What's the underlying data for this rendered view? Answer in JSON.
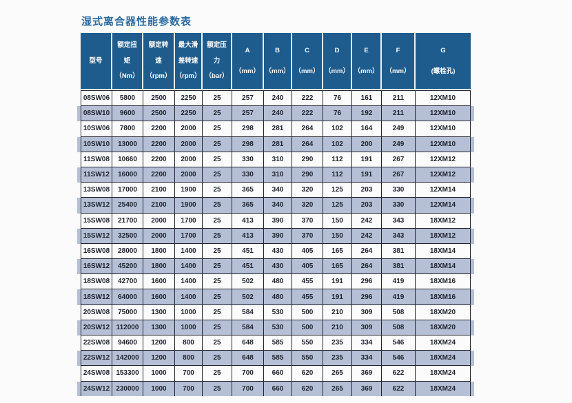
{
  "title": "湿式离合器性能参数表",
  "colors": {
    "header_bg": "#1e5c8e",
    "stripe": "#b5c0d7",
    "border": "#23232e",
    "title": "#2a6aa3"
  },
  "table": {
    "columns": [
      {
        "id": "model",
        "lines": [
          "型号"
        ]
      },
      {
        "id": "torque",
        "lines": [
          "额定扭",
          "矩",
          "（Nm）"
        ]
      },
      {
        "id": "speed",
        "lines": [
          "额定转",
          "速",
          "（rpm）"
        ]
      },
      {
        "id": "slip",
        "lines": [
          "最大滑",
          "差转速",
          "（rpm）"
        ]
      },
      {
        "id": "pressure",
        "lines": [
          "额定压",
          "力",
          "（bar）"
        ]
      },
      {
        "id": "A",
        "lines": [
          "A",
          "（mm）"
        ]
      },
      {
        "id": "B",
        "lines": [
          "B",
          "（mm）"
        ]
      },
      {
        "id": "C",
        "lines": [
          "C",
          "（mm）"
        ]
      },
      {
        "id": "D",
        "lines": [
          "D",
          "（mm）"
        ]
      },
      {
        "id": "E",
        "lines": [
          "E",
          "（mm）"
        ]
      },
      {
        "id": "F",
        "lines": [
          "F",
          "（mm）"
        ]
      },
      {
        "id": "G",
        "lines": [
          "G",
          "(螺栓孔)"
        ]
      }
    ],
    "rows": [
      [
        "08SW06",
        "5800",
        "2500",
        "2250",
        "25",
        "257",
        "240",
        "222",
        "76",
        "161",
        "211",
        "12XM10"
      ],
      [
        "08SW10",
        "9600",
        "2500",
        "2250",
        "25",
        "257",
        "240",
        "222",
        "76",
        "192",
        "211",
        "12XM10"
      ],
      [
        "10SW06",
        "7800",
        "2200",
        "2000",
        "25",
        "298",
        "281",
        "264",
        "102",
        "164",
        "249",
        "12XM10"
      ],
      [
        "10SW10",
        "13000",
        "2200",
        "2000",
        "25",
        "298",
        "281",
        "264",
        "102",
        "200",
        "249",
        "12XM10"
      ],
      [
        "11SW08",
        "10660",
        "2200",
        "2000",
        "25",
        "330",
        "310",
        "290",
        "112",
        "191",
        "267",
        "12XM12"
      ],
      [
        "11SW12",
        "16000",
        "2200",
        "2000",
        "25",
        "330",
        "310",
        "290",
        "112",
        "191",
        "267",
        "12XM12"
      ],
      [
        "13SW08",
        "17000",
        "2100",
        "1900",
        "25",
        "365",
        "340",
        "320",
        "125",
        "203",
        "330",
        "12XM14"
      ],
      [
        "13SW12",
        "25400",
        "2100",
        "1900",
        "25",
        "365",
        "340",
        "320",
        "125",
        "203",
        "330",
        "12XM14"
      ],
      [
        "15SW08",
        "21700",
        "2000",
        "1700",
        "25",
        "413",
        "390",
        "370",
        "150",
        "242",
        "343",
        "18XM12"
      ],
      [
        "15SW12",
        "32500",
        "2000",
        "1700",
        "25",
        "413",
        "390",
        "370",
        "150",
        "242",
        "343",
        "18XM12"
      ],
      [
        "16SW08",
        "28000",
        "1800",
        "1400",
        "25",
        "451",
        "430",
        "405",
        "165",
        "264",
        "381",
        "18XM14"
      ],
      [
        "16SW12",
        "45200",
        "1800",
        "1400",
        "25",
        "451",
        "430",
        "405",
        "165",
        "264",
        "381",
        "18XM14"
      ],
      [
        "18SW08",
        "42700",
        "1600",
        "1400",
        "25",
        "502",
        "480",
        "455",
        "191",
        "296",
        "419",
        "18XM16"
      ],
      [
        "18SW12",
        "64000",
        "1600",
        "1400",
        "25",
        "502",
        "480",
        "455",
        "191",
        "296",
        "419",
        "18XM16"
      ],
      [
        "20SW08",
        "75000",
        "1300",
        "1000",
        "25",
        "584",
        "530",
        "500",
        "210",
        "309",
        "508",
        "18XM20"
      ],
      [
        "20SW12",
        "112000",
        "1300",
        "1000",
        "25",
        "584",
        "530",
        "500",
        "210",
        "309",
        "508",
        "18XM20"
      ],
      [
        "22SW08",
        "94600",
        "1200",
        "800",
        "25",
        "648",
        "585",
        "550",
        "235",
        "334",
        "546",
        "18XM24"
      ],
      [
        "22SW12",
        "142000",
        "1200",
        "800",
        "25",
        "648",
        "585",
        "550",
        "235",
        "334",
        "546",
        "18XM24"
      ],
      [
        "24SW08",
        "153300",
        "1000",
        "700",
        "25",
        "700",
        "660",
        "620",
        "265",
        "369",
        "622",
        "18XM24"
      ],
      [
        "24SW12",
        "230000",
        "1000",
        "700",
        "25",
        "700",
        "660",
        "620",
        "265",
        "369",
        "622",
        "18XM24"
      ]
    ]
  }
}
